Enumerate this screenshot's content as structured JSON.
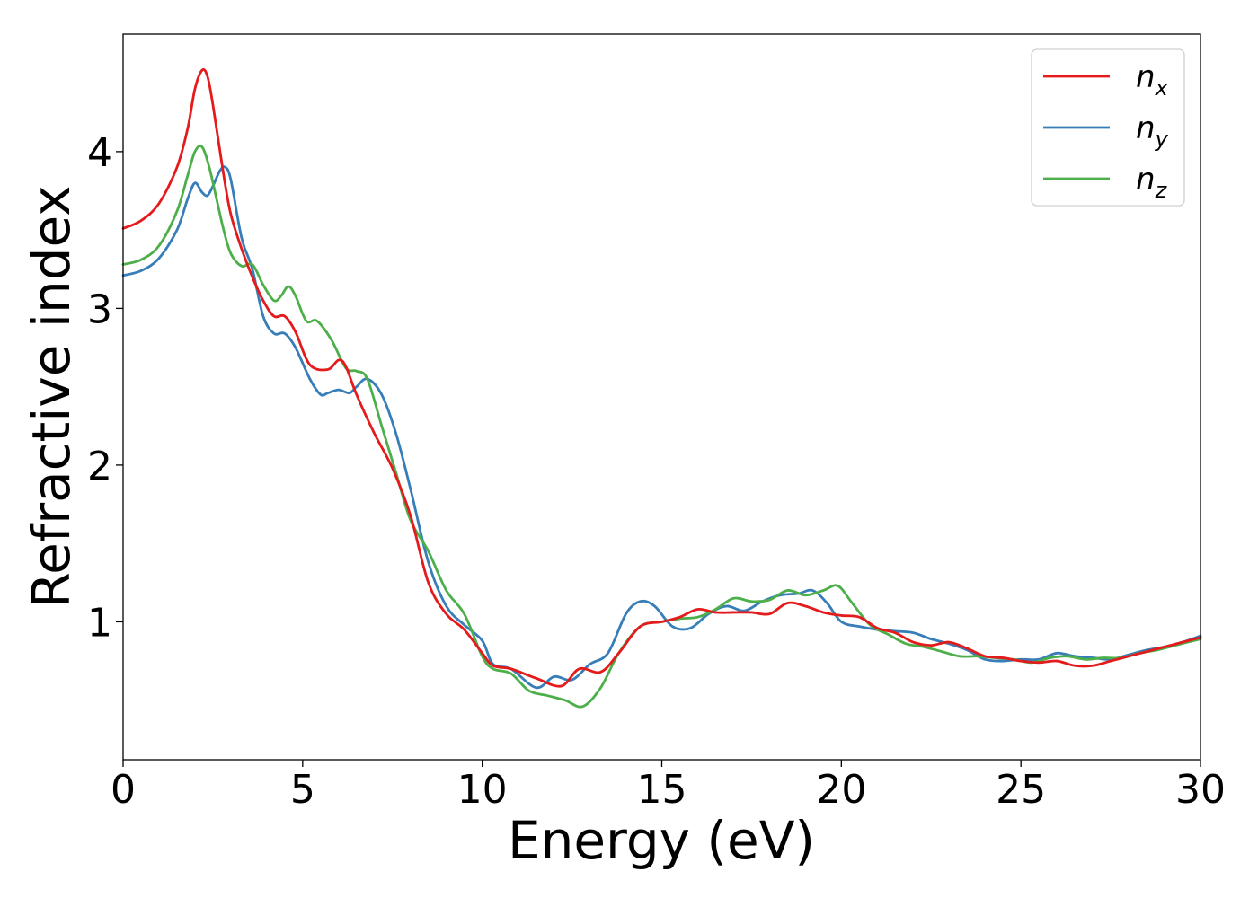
{
  "chart_data": {
    "type": "line",
    "title": "",
    "xlabel": "Energy (eV)",
    "ylabel": "Refractive index",
    "xlim": [
      0,
      30
    ],
    "ylim": [
      0.12,
      4.75
    ],
    "xticks": [
      0,
      5,
      10,
      15,
      20,
      25,
      30
    ],
    "xtick_labels": [
      "0",
      "5",
      "10",
      "15",
      "20",
      "25",
      "30"
    ],
    "yticks": [
      1,
      2,
      3,
      4
    ],
    "ytick_labels": [
      "1",
      "2",
      "3",
      "4"
    ],
    "grid": false,
    "legend_position": "top-right",
    "colors": {
      "nx": "#e41a1c",
      "ny": "#377eb8",
      "nz": "#4daf4a"
    },
    "series": [
      {
        "name": "n_x",
        "legend_main": "n",
        "legend_sub": "x",
        "color": "#e41a1c",
        "x": [
          0,
          0.5,
          1.0,
          1.5,
          1.8,
          2.0,
          2.2,
          2.35,
          2.5,
          2.8,
          3.0,
          3.3,
          3.6,
          3.9,
          4.2,
          4.5,
          4.8,
          5.2,
          5.7,
          6.0,
          6.2,
          6.5,
          7.0,
          7.5,
          8.0,
          8.5,
          9.0,
          9.5,
          10.0,
          10.3,
          10.8,
          11.5,
          12.2,
          12.7,
          13.3,
          13.8,
          14.4,
          15.0,
          15.5,
          16.0,
          16.5,
          17.0,
          17.5,
          18.0,
          18.5,
          19.0,
          19.5,
          20.0,
          20.5,
          21.0,
          21.5,
          22.0,
          22.5,
          23.0,
          23.5,
          24.0,
          24.5,
          25.0,
          25.5,
          26.0,
          26.5,
          27.0,
          27.5,
          28.0,
          28.5,
          29.0,
          29.5,
          30.0
        ],
        "y": [
          3.51,
          3.56,
          3.67,
          3.9,
          4.15,
          4.4,
          4.52,
          4.48,
          4.3,
          3.85,
          3.6,
          3.38,
          3.2,
          3.05,
          2.95,
          2.95,
          2.85,
          2.64,
          2.61,
          2.67,
          2.63,
          2.45,
          2.2,
          1.98,
          1.68,
          1.25,
          1.05,
          0.95,
          0.8,
          0.72,
          0.7,
          0.64,
          0.59,
          0.7,
          0.68,
          0.8,
          0.97,
          1.0,
          1.03,
          1.08,
          1.06,
          1.06,
          1.06,
          1.05,
          1.12,
          1.1,
          1.06,
          1.04,
          1.03,
          0.96,
          0.93,
          0.87,
          0.85,
          0.87,
          0.83,
          0.78,
          0.77,
          0.75,
          0.74,
          0.75,
          0.72,
          0.72,
          0.75,
          0.78,
          0.81,
          0.84,
          0.87,
          0.9
        ]
      },
      {
        "name": "n_y",
        "legend_main": "n",
        "legend_sub": "y",
        "color": "#377eb8",
        "x": [
          0,
          0.5,
          1.0,
          1.5,
          1.8,
          2.0,
          2.2,
          2.35,
          2.5,
          2.7,
          2.85,
          3.0,
          3.3,
          3.6,
          3.9,
          4.2,
          4.5,
          4.8,
          5.2,
          5.5,
          5.7,
          6.0,
          6.3,
          6.5,
          6.8,
          7.2,
          7.6,
          8.0,
          8.5,
          9.0,
          9.5,
          10.0,
          10.3,
          10.8,
          11.5,
          12.0,
          12.5,
          13.0,
          13.5,
          14.0,
          14.4,
          14.8,
          15.3,
          15.8,
          16.3,
          16.8,
          17.3,
          17.8,
          18.3,
          18.8,
          19.2,
          19.6,
          20.0,
          20.5,
          21.0,
          21.5,
          22.0,
          22.5,
          23.0,
          23.5,
          24.0,
          24.5,
          25.0,
          25.5,
          26.0,
          26.5,
          27.0,
          27.5,
          28.0,
          28.5,
          29.0,
          29.5,
          30.0
        ],
        "y": [
          3.21,
          3.24,
          3.32,
          3.5,
          3.7,
          3.8,
          3.74,
          3.72,
          3.78,
          3.88,
          3.9,
          3.82,
          3.45,
          3.25,
          2.95,
          2.84,
          2.84,
          2.75,
          2.55,
          2.45,
          2.46,
          2.48,
          2.46,
          2.5,
          2.55,
          2.45,
          2.2,
          1.85,
          1.38,
          1.1,
          0.98,
          0.88,
          0.73,
          0.7,
          0.58,
          0.65,
          0.63,
          0.73,
          0.8,
          1.05,
          1.13,
          1.1,
          0.97,
          0.96,
          1.05,
          1.1,
          1.07,
          1.13,
          1.17,
          1.18,
          1.2,
          1.12,
          1.0,
          0.97,
          0.95,
          0.94,
          0.93,
          0.89,
          0.86,
          0.82,
          0.76,
          0.75,
          0.76,
          0.76,
          0.8,
          0.78,
          0.77,
          0.76,
          0.79,
          0.82,
          0.84,
          0.87,
          0.91
        ]
      },
      {
        "name": "n_z",
        "legend_main": "n",
        "legend_sub": "z",
        "color": "#4daf4a",
        "x": [
          0,
          0.5,
          1.0,
          1.5,
          1.8,
          2.0,
          2.2,
          2.4,
          2.6,
          2.8,
          3.0,
          3.3,
          3.6,
          3.9,
          4.2,
          4.4,
          4.6,
          4.8,
          5.1,
          5.4,
          5.8,
          6.2,
          6.5,
          6.8,
          7.2,
          7.6,
          8.0,
          8.5,
          9.0,
          9.5,
          10.0,
          10.3,
          10.8,
          11.3,
          11.8,
          12.3,
          12.8,
          13.3,
          13.8,
          14.4,
          15.0,
          15.5,
          16.0,
          16.5,
          17.0,
          17.5,
          18.0,
          18.5,
          19.0,
          19.5,
          19.9,
          20.3,
          20.8,
          21.3,
          21.8,
          22.3,
          22.8,
          23.3,
          23.8,
          24.3,
          24.8,
          25.3,
          25.8,
          26.3,
          26.8,
          27.3,
          27.8,
          28.3,
          28.8,
          29.3,
          30.0
        ],
        "y": [
          3.28,
          3.31,
          3.4,
          3.62,
          3.85,
          4.0,
          4.03,
          3.9,
          3.7,
          3.5,
          3.35,
          3.27,
          3.28,
          3.15,
          3.05,
          3.08,
          3.14,
          3.08,
          2.92,
          2.92,
          2.8,
          2.62,
          2.6,
          2.55,
          2.25,
          1.95,
          1.65,
          1.45,
          1.2,
          1.05,
          0.78,
          0.7,
          0.67,
          0.56,
          0.53,
          0.5,
          0.46,
          0.58,
          0.8,
          0.97,
          1.0,
          1.02,
          1.03,
          1.08,
          1.15,
          1.13,
          1.14,
          1.2,
          1.17,
          1.2,
          1.23,
          1.12,
          0.98,
          0.92,
          0.86,
          0.84,
          0.81,
          0.78,
          0.78,
          0.77,
          0.76,
          0.74,
          0.77,
          0.78,
          0.76,
          0.77,
          0.77,
          0.8,
          0.82,
          0.85,
          0.89
        ]
      }
    ]
  }
}
